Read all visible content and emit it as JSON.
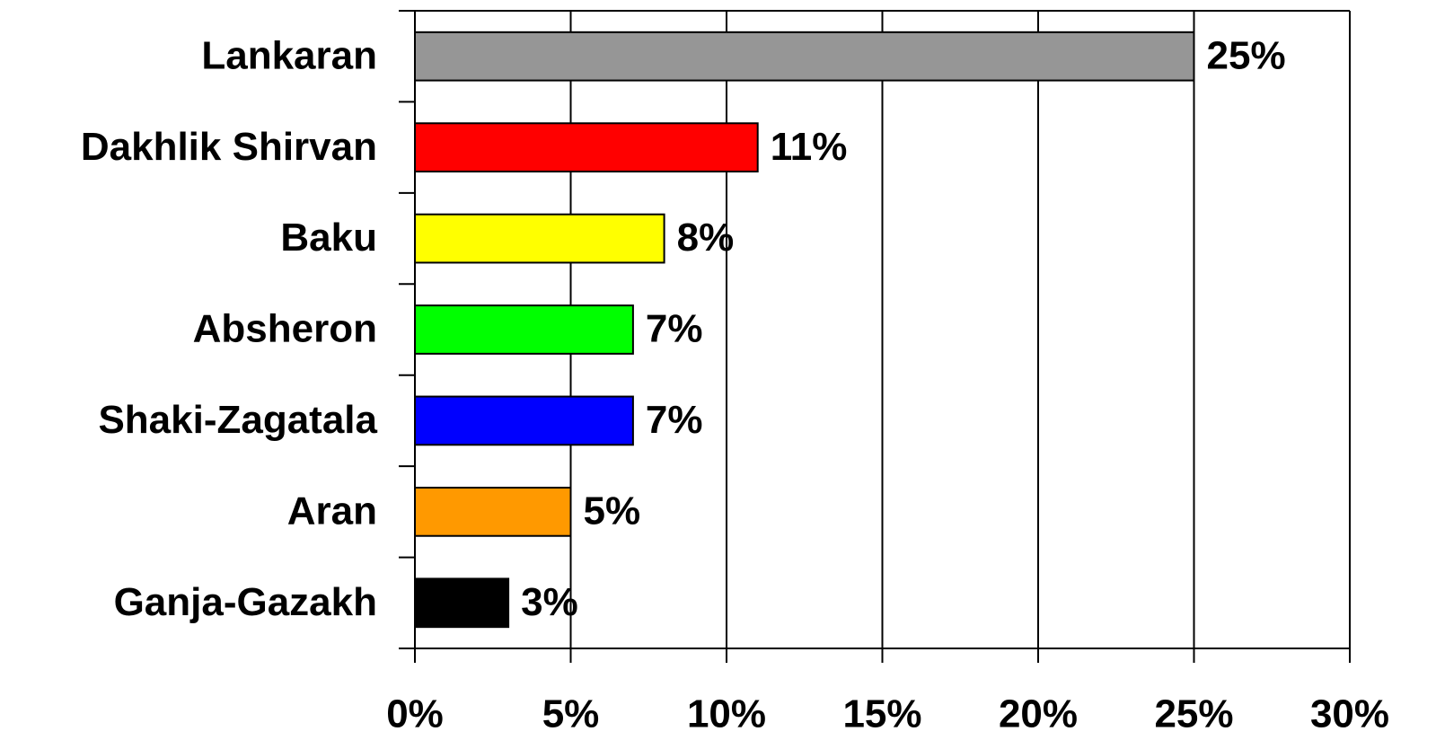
{
  "chart_data": {
    "type": "bar",
    "orientation": "horizontal",
    "categories": [
      "Lankaran",
      "Dakhlik Shirvan",
      "Baku",
      "Absheron",
      "Shaki-Zagatala",
      "Aran",
      "Ganja-Gazakh"
    ],
    "values": [
      25,
      11,
      8,
      7,
      7,
      5,
      3
    ],
    "value_labels": [
      "25%",
      "11%",
      "8%",
      "7%",
      "7%",
      "5%",
      "3%"
    ],
    "colors": [
      "#969696",
      "#ff0000",
      "#ffff00",
      "#00ff00",
      "#0000ff",
      "#ff9900",
      "#000000"
    ],
    "xlim": [
      0,
      30
    ],
    "xticks": [
      {
        "value": 0,
        "label": "0%"
      },
      {
        "value": 5,
        "label": "5%"
      },
      {
        "value": 10,
        "label": "10%"
      },
      {
        "value": 15,
        "label": "15%"
      },
      {
        "value": 20,
        "label": "20%"
      },
      {
        "value": 25,
        "label": "25%"
      },
      {
        "value": 30,
        "label": "30%"
      }
    ],
    "grid": true
  }
}
